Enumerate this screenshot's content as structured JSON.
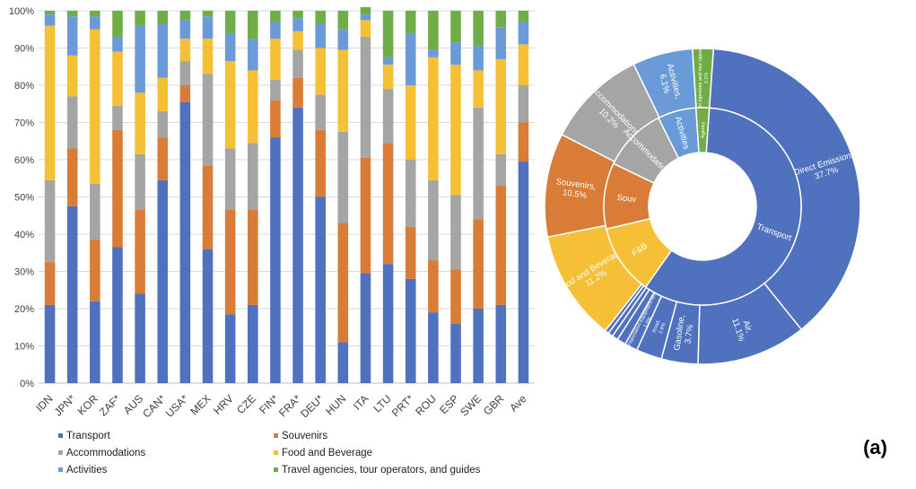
{
  "chart_data": [
    {
      "type": "bar",
      "stacked": true,
      "ylim": [
        0,
        100
      ],
      "yticks": [
        "0%",
        "10%",
        "20%",
        "30%",
        "40%",
        "50%",
        "60%",
        "70%",
        "80%",
        "90%",
        "100%"
      ],
      "categories": [
        "IDN",
        "JPN*",
        "KOR",
        "ZAF*",
        "AUS",
        "CAN*",
        "USA*",
        "MEX",
        "HRV",
        "CZE",
        "FIN*",
        "FRA*",
        "DEU*",
        "HUN",
        "ITA",
        "LTU",
        "PRT*",
        "ROU",
        "ESP",
        "SWE",
        "GBR",
        "Ave"
      ],
      "series": [
        {
          "name": "Transport",
          "color": "#4f71be",
          "values": [
            21,
            47.5,
            22,
            36.5,
            24,
            54.5,
            75.5,
            36,
            18.5,
            21,
            66,
            74,
            50,
            11,
            29.5,
            32,
            28,
            19,
            16,
            20,
            21,
            59.5
          ]
        },
        {
          "name": "Souvenirs",
          "color": "#d97c38",
          "values": [
            11.5,
            15.5,
            16.5,
            31.5,
            22.5,
            11.5,
            4.5,
            22.5,
            28,
            25.5,
            10,
            8,
            18,
            32,
            31,
            32.5,
            14,
            14,
            14.5,
            24,
            32,
            10.5
          ]
        },
        {
          "name": "Accommodations",
          "color": "#a5a5a5",
          "values": [
            22,
            14,
            15,
            6.5,
            15,
            7,
            6.5,
            24.5,
            16.5,
            18,
            5.5,
            7.5,
            9.5,
            24.5,
            32.5,
            14.5,
            18,
            21.5,
            20,
            30,
            8.5,
            10
          ]
        },
        {
          "name": "Food and Beverage",
          "color": "#f5c035",
          "values": [
            41.5,
            11,
            41.5,
            14.5,
            16.5,
            9,
            6,
            9.5,
            23.5,
            19.5,
            11,
            5,
            12.5,
            22,
            4.5,
            6.5,
            20,
            33,
            35,
            10,
            25.5,
            11
          ]
        },
        {
          "name": "Activities",
          "color": "#6a9bd8",
          "values": [
            3,
            10.5,
            3.5,
            4,
            18,
            14.5,
            5,
            6,
            7.5,
            8.5,
            4.5,
            3.5,
            6.5,
            5.5,
            1.5,
            2,
            14,
            2,
            6,
            6.5,
            8.5,
            6
          ]
        },
        {
          "name": "Travel agencies, tour operators, and guides",
          "color": "#71ad47",
          "values": [
            1,
            1.5,
            1.5,
            7,
            4,
            3.5,
            2.5,
            1.5,
            6,
            7.5,
            3,
            2,
            3.5,
            5,
            2,
            12.5,
            6,
            10.5,
            8.5,
            9.5,
            4.5,
            3
          ]
        }
      ]
    },
    {
      "type": "pie",
      "variant": "sunburst",
      "inner_ring": [
        {
          "label": "Transport",
          "value": 56.9,
          "color": "#4f71be"
        },
        {
          "label": "F&B",
          "value": 11.2,
          "color": "#f5c035"
        },
        {
          "label": "Souv",
          "value": 10.5,
          "color": "#d97c38"
        },
        {
          "label": "Accommodations",
          "value": 10.2,
          "color": "#a5a5a5"
        },
        {
          "label": "Activities",
          "value": 6.1,
          "color": "#6a9bd8"
        },
        {
          "label": "Agency",
          "value": 2.1,
          "color": "#71ad47"
        }
      ],
      "outer_ring": [
        {
          "label": "Direct Emission, 37.7%",
          "value": 37.7,
          "color": "#4f71be"
        },
        {
          "label": "Air, 11.1%",
          "value": 11.1,
          "color": "#4f71be"
        },
        {
          "label": "Gasoline, 3.7%",
          "value": 3.7,
          "color": "#4f71be"
        },
        {
          "label": "Road, 2.6%",
          "value": 2.6,
          "color": "#4f71be"
        },
        {
          "label": "Transportation equipment rental, 1.3%",
          "value": 1.3,
          "color": "#4f71be"
        },
        {
          "label": "",
          "value": 0.9,
          "color": "#4f71be"
        },
        {
          "label": "",
          "value": 0.6,
          "color": "#4f71be"
        },
        {
          "label": "",
          "value": 0.5,
          "color": "#4f71be"
        },
        {
          "label": "",
          "value": 0.4,
          "color": "#4f71be"
        },
        {
          "label": "Food and Beverage, 11.2%",
          "value": 11.2,
          "color": "#f5c035"
        },
        {
          "label": "Souvenirs, 10.5%",
          "value": 10.5,
          "color": "#d97c38"
        },
        {
          "label": "Accommodations, 10.2%",
          "value": 10.2,
          "color": "#a5a5a5"
        },
        {
          "label": "Activities, 6.1%",
          "value": 6.1,
          "color": "#6a9bd8"
        },
        {
          "label": "Travel agencies and tour operators, 2.1%",
          "value": 2.1,
          "color": "#71ad47"
        }
      ]
    }
  ],
  "panel_label": "(a)"
}
